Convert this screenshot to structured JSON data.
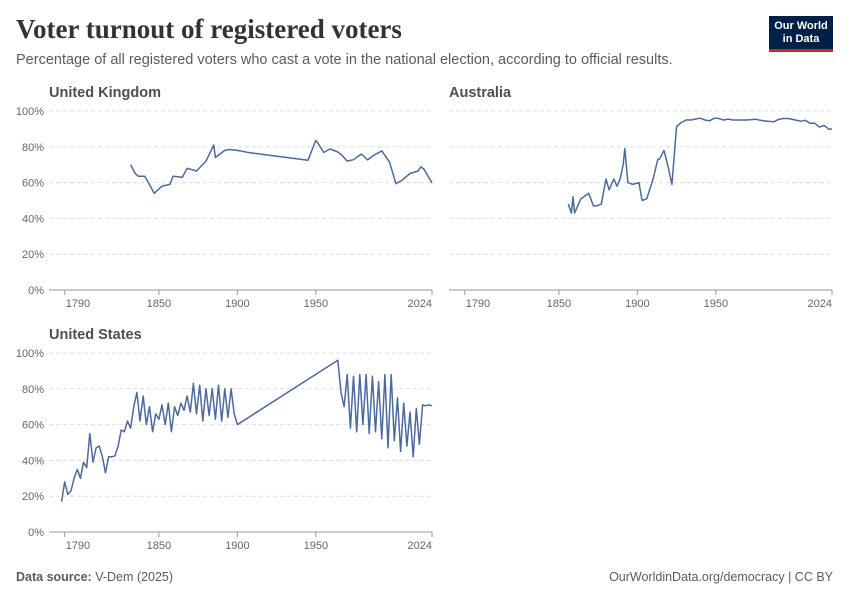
{
  "header": {
    "title": "Voter turnout of registered voters",
    "subtitle": "Percentage of all registered voters who cast a vote in the national election, according to official results.",
    "logo_line1": "Our World",
    "logo_line2": "in Data"
  },
  "footer": {
    "source_label": "Data source:",
    "source_value": "V-Dem (2025)",
    "url": "OurWorldinData.org/democracy | CC BY"
  },
  "colors": {
    "line": "#4c6a9c",
    "grid": "#dddddd",
    "axis": "#999999"
  },
  "chart_data": [
    {
      "type": "line",
      "title": "United Kingdom",
      "xlim": [
        1780,
        2024
      ],
      "xticks": [
        1790,
        1850,
        1900,
        1950,
        2024
      ],
      "ylim": [
        0,
        100
      ],
      "yticks": [
        "0%",
        "20%",
        "40%",
        "60%",
        "80%",
        "100%"
      ],
      "grid": true,
      "series": [
        {
          "x": [
            1832,
            1835,
            1837,
            1841,
            1847,
            1852,
            1857,
            1859,
            1865,
            1868,
            1874,
            1880,
            1885,
            1886,
            1892,
            1895,
            1900,
            1906,
            1910,
            1945,
            1950,
            1951,
            1955,
            1959,
            1964,
            1966,
            1970,
            1974,
            1979,
            1983,
            1987,
            1992,
            1997,
            2001,
            2005,
            2010,
            2015,
            2017,
            2019,
            2024
          ],
          "y": [
            70,
            65,
            63.5,
            63.5,
            54,
            58,
            59,
            63.5,
            63,
            68,
            66.5,
            72,
            81,
            74,
            78,
            78.5,
            78,
            77,
            76.5,
            72.5,
            83.6,
            82.5,
            76.8,
            78.8,
            77.1,
            75.8,
            72,
            72.8,
            76,
            72.7,
            75.3,
            77.7,
            71.4,
            59.4,
            61.4,
            65.1,
            66.4,
            68.8,
            67.3,
            59.8
          ]
        }
      ]
    },
    {
      "type": "line",
      "title": "Australia",
      "xlim": [
        1780,
        2024
      ],
      "xticks": [
        1790,
        1850,
        1900,
        1950,
        2024
      ],
      "ylim": [
        0,
        100
      ],
      "yticks": [
        "0%",
        "20%",
        "40%",
        "60%",
        "80%",
        "100%"
      ],
      "grid": true,
      "series": [
        {
          "x": [
            1856,
            1858,
            1859,
            1860,
            1864,
            1869,
            1872,
            1874,
            1877,
            1880,
            1882,
            1885,
            1887,
            1889,
            1891,
            1892,
            1894,
            1897,
            1901,
            1903,
            1906,
            1910,
            1913,
            1914,
            1917,
            1919,
            1922,
            1925,
            1928,
            1931,
            1934,
            1937,
            1940,
            1943,
            1946,
            1949,
            1951,
            1955,
            1958,
            1961,
            1966,
            1970,
            1975,
            1980,
            1984,
            1987,
            1990,
            1993,
            1996,
            2001,
            2004,
            2007,
            2010,
            2013,
            2016,
            2019,
            2022,
            2024
          ],
          "y": [
            48,
            43,
            52,
            43,
            51,
            54,
            47,
            47,
            48,
            62,
            56,
            62,
            58,
            62,
            70,
            79,
            60,
            59,
            60,
            50,
            51,
            62,
            73,
            73,
            78,
            71,
            59,
            91.4,
            93.6,
            95,
            95,
            95.5,
            96,
            95,
            94.5,
            96,
            96,
            95,
            95.5,
            95,
            95,
            95,
            95.4,
            94.5,
            94.2,
            94,
            95.3,
            95.8,
            95.8,
            94.9,
            94.3,
            94.8,
            93.2,
            93.2,
            91,
            91.9,
            89.8,
            90
          ]
        }
      ]
    },
    {
      "type": "line",
      "title": "United States",
      "xlim": [
        1780,
        2024
      ],
      "xticks": [
        1790,
        1850,
        1900,
        1950,
        2024
      ],
      "ylim": [
        0,
        100
      ],
      "yticks": [
        "0%",
        "20%",
        "40%",
        "60%",
        "80%",
        "100%"
      ],
      "grid": true,
      "series": [
        {
          "x": [
            1788,
            1790,
            1792,
            1794,
            1796,
            1798,
            1800,
            1802,
            1804,
            1806,
            1808,
            1810,
            1812,
            1814,
            1816,
            1818,
            1820,
            1822,
            1824,
            1826,
            1828,
            1830,
            1832,
            1834,
            1836,
            1838,
            1840,
            1842,
            1844,
            1846,
            1848,
            1850,
            1852,
            1854,
            1856,
            1858,
            1860,
            1862,
            1864,
            1866,
            1868,
            1870,
            1872,
            1874,
            1876,
            1878,
            1880,
            1882,
            1884,
            1886,
            1888,
            1890,
            1892,
            1894,
            1896,
            1898,
            1900,
            1964,
            1966,
            1968,
            1970,
            1972,
            1974,
            1976,
            1978,
            1980,
            1982,
            1984,
            1986,
            1988,
            1990,
            1992,
            1994,
            1996,
            1998,
            2000,
            2002,
            2004,
            2006,
            2008,
            2010,
            2012,
            2014,
            2016,
            2018,
            2020,
            2022,
            2024
          ],
          "y": [
            17,
            28,
            21,
            23,
            30,
            35,
            30,
            39,
            36,
            55,
            39,
            47,
            48,
            42,
            33,
            42,
            42,
            42.5,
            48,
            57,
            56,
            62,
            58,
            70,
            78,
            62,
            76,
            60,
            70,
            56,
            66,
            63,
            71,
            60,
            72,
            56,
            70,
            65,
            72,
            68,
            76,
            67,
            83,
            66,
            82,
            62,
            80,
            65,
            80,
            63,
            82,
            62,
            80,
            64,
            80,
            66,
            60,
            96,
            78,
            70,
            88,
            58,
            87,
            56,
            88,
            60,
            88,
            55,
            87,
            56,
            84,
            52,
            88,
            47,
            88,
            51,
            75,
            45,
            72,
            48,
            67,
            42,
            69,
            49,
            71,
            70.5,
            71,
            70.5
          ]
        }
      ]
    }
  ]
}
